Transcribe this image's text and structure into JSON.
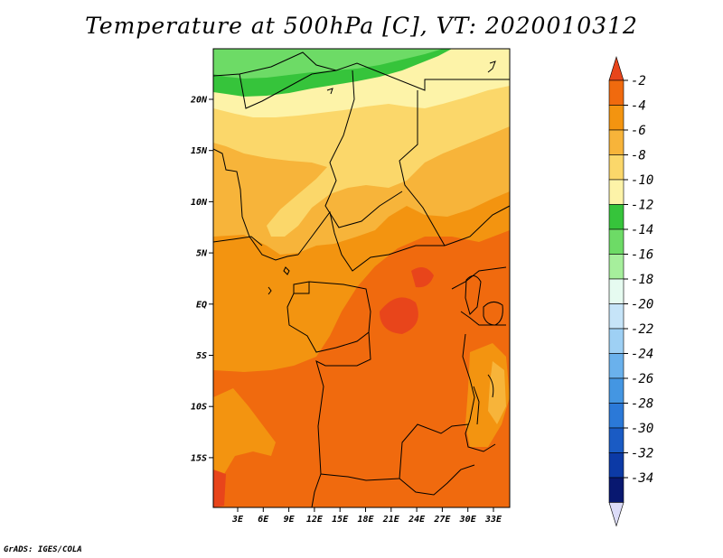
{
  "title": "Temperature at 500hPa [C], VT: 2020010312",
  "credit": "GrADS: IGES/COLA",
  "map": {
    "lat_ticks": [
      "20N",
      "15N",
      "10N",
      "5N",
      "EQ",
      "5S",
      "10S",
      "15S"
    ],
    "lon_ticks": [
      "3E",
      "6E",
      "9E",
      "12E",
      "15E",
      "18E",
      "21E",
      "24E",
      "27E",
      "30E",
      "33E"
    ]
  },
  "colorbar": {
    "labels": [
      "-2",
      "-4",
      "-6",
      "-8",
      "-10",
      "-12",
      "-14",
      "-16",
      "-18",
      "-20",
      "-22",
      "-24",
      "-26",
      "-28",
      "-30",
      "-32",
      "-34"
    ],
    "colors": [
      "#e8451b",
      "#f06a0e",
      "#f39410",
      "#f7b43a",
      "#fbd76a",
      "#fdf3a8",
      "#36c43b",
      "#6ddb66",
      "#a6ef9c",
      "#e6fbf0",
      "#c6e4f8",
      "#9ed0f4",
      "#6ab1ec",
      "#4496e2",
      "#2b79d8",
      "#1a5bc4",
      "#0c3aa6",
      "#081870"
    ],
    "top_color": "#e8451b",
    "bottom_color": "#dcdcf8"
  }
}
